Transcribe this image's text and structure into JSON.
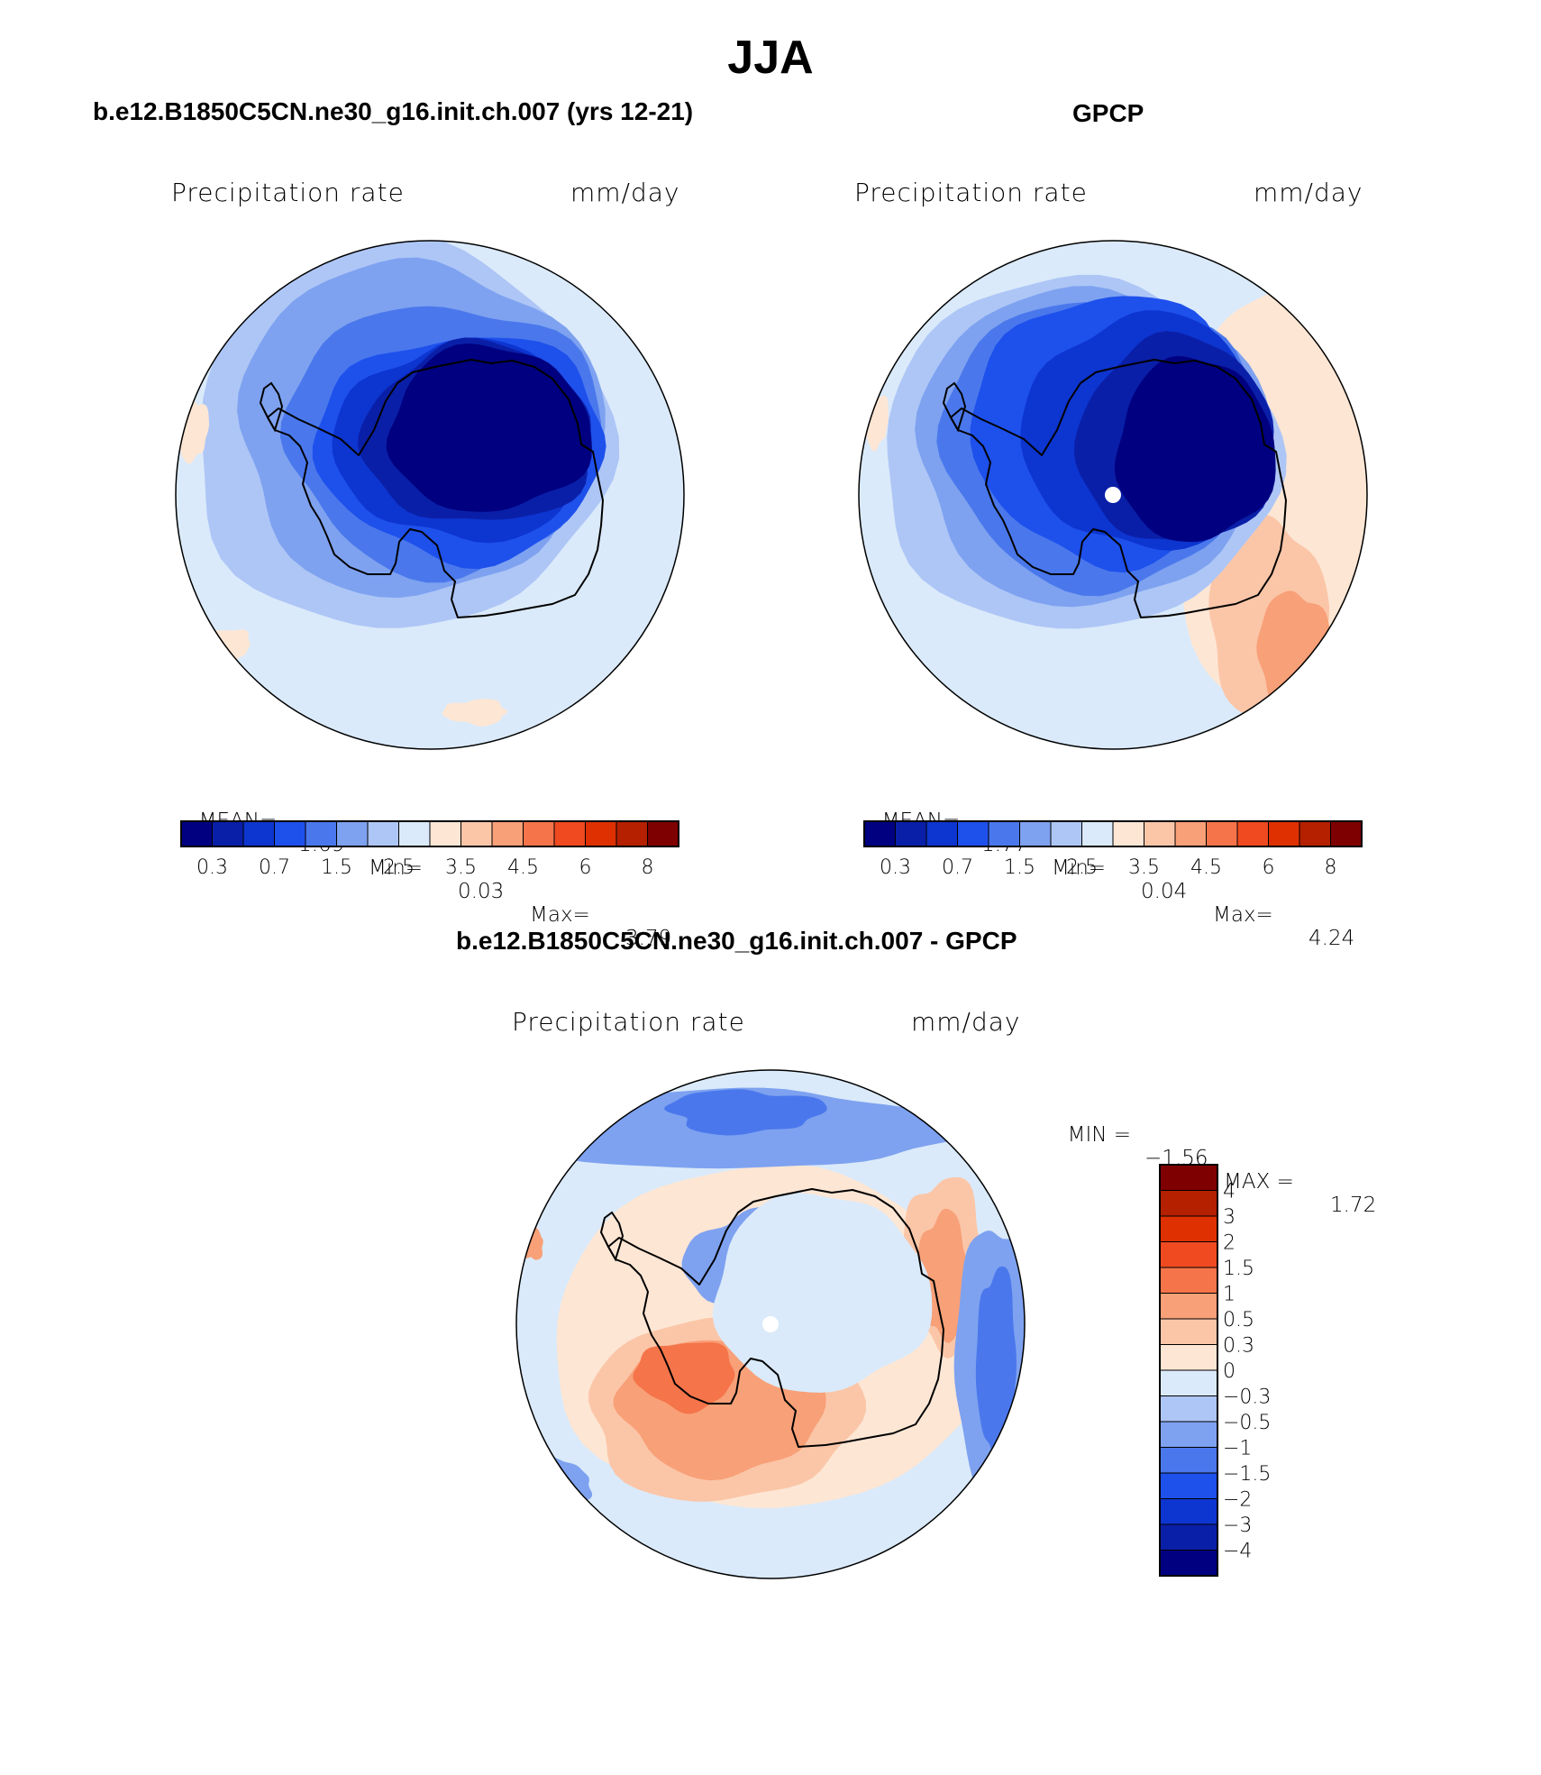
{
  "main_title": "JJA",
  "panels": [
    {
      "title": "b.e12.B1850C5CN.ne30_g16.init.ch.007 (yrs 12-21)",
      "var_label": "Precipitation rate",
      "unit_label": "mm/day",
      "mean_label": "MEAN=",
      "mean_value": "1.69",
      "min_label": "Min=",
      "min_value": "0.03",
      "max_label": "Max=",
      "max_value": "3.79",
      "field_type": "model"
    },
    {
      "title": "GPCP",
      "var_label": "Precipitation rate",
      "unit_label": "mm/day",
      "mean_label": "MEAN=",
      "mean_value": "1.77",
      "min_label": "Min=",
      "min_value": "0.04",
      "max_label": "Max=",
      "max_value": "4.24",
      "field_type": "obs"
    },
    {
      "title": "b.e12.B1850C5CN.ne30_g16.init.ch.007 - GPCP",
      "var_label": "Precipitation rate",
      "unit_label": "mm/day",
      "min_label": "MIN =",
      "min_value": "−1.56",
      "max_label": "MAX =",
      "max_value": "1.72",
      "field_type": "diff"
    }
  ],
  "abs_colorbar": {
    "colors": [
      "#000080",
      "#0a1fa8",
      "#0d35d0",
      "#1e50ec",
      "#4a78ec",
      "#7ea2f0",
      "#aec6f6",
      "#daeafa",
      "#fde6d4",
      "#fbc6a8",
      "#f8a078",
      "#f5744a",
      "#f04a20",
      "#de3000",
      "#b42000",
      "#7f0000"
    ],
    "tick_labels": [
      "0.3",
      "0.7",
      "1.5",
      "2.5",
      "3.5",
      "4.5",
      "6",
      "8"
    ]
  },
  "diff_colorbar": {
    "colors": [
      "#7f0000",
      "#b42000",
      "#de3000",
      "#f04a20",
      "#f5744a",
      "#f8a078",
      "#fbc6a8",
      "#fde6d4",
      "#daeafa",
      "#aec6f6",
      "#7ea2f0",
      "#4a78ec",
      "#1e50ec",
      "#0d35d0",
      "#0a1fa8",
      "#000080"
    ],
    "tick_labels": [
      "4",
      "3",
      "2",
      "1.5",
      "1",
      "0.5",
      "0.3",
      "0",
      "−0.3",
      "−0.5",
      "−1",
      "−1.5",
      "−2",
      "−3",
      "−4"
    ]
  }
}
